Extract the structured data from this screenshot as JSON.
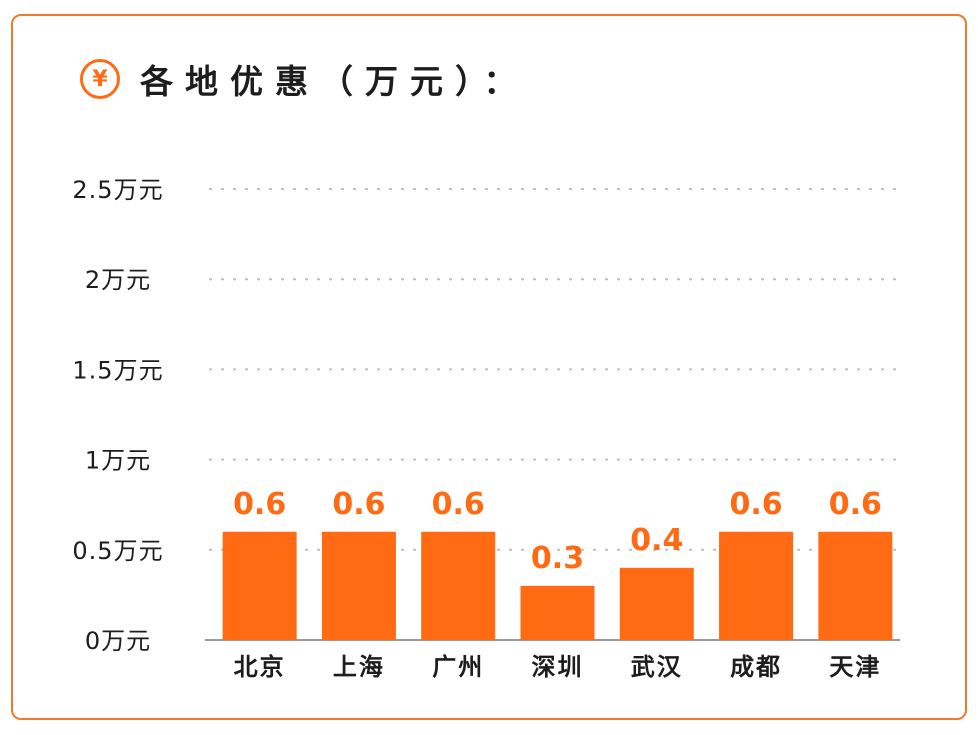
{
  "header": {
    "icon": "yen-icon",
    "icon_glyph": "¥",
    "title": "各地优惠（万元）："
  },
  "colors": {
    "accent": "#ff6a13",
    "border": "#ee7a2c",
    "grid": "#bfbfbf",
    "text": "#1d1d1d"
  },
  "chart_data": {
    "type": "bar",
    "title": "各地优惠（万元）：",
    "categories": [
      "北京",
      "上海",
      "广州",
      "深圳",
      "武汉",
      "成都",
      "天津"
    ],
    "values": [
      0.6,
      0.6,
      0.6,
      0.3,
      0.4,
      0.6,
      0.6
    ],
    "value_labels": [
      "0.6",
      "0.6",
      "0.6",
      "0.3",
      "0.4",
      "0.6",
      "0.6"
    ],
    "y_ticks": [
      0,
      0.5,
      1,
      1.5,
      2,
      2.5
    ],
    "y_tick_labels": [
      "0万元",
      "0.5万元",
      "1万元",
      "1.5万元",
      "2万元",
      "2.5万元"
    ],
    "ylim": [
      0,
      2.5
    ],
    "grid": true,
    "bar_color": "#ff6a13"
  }
}
